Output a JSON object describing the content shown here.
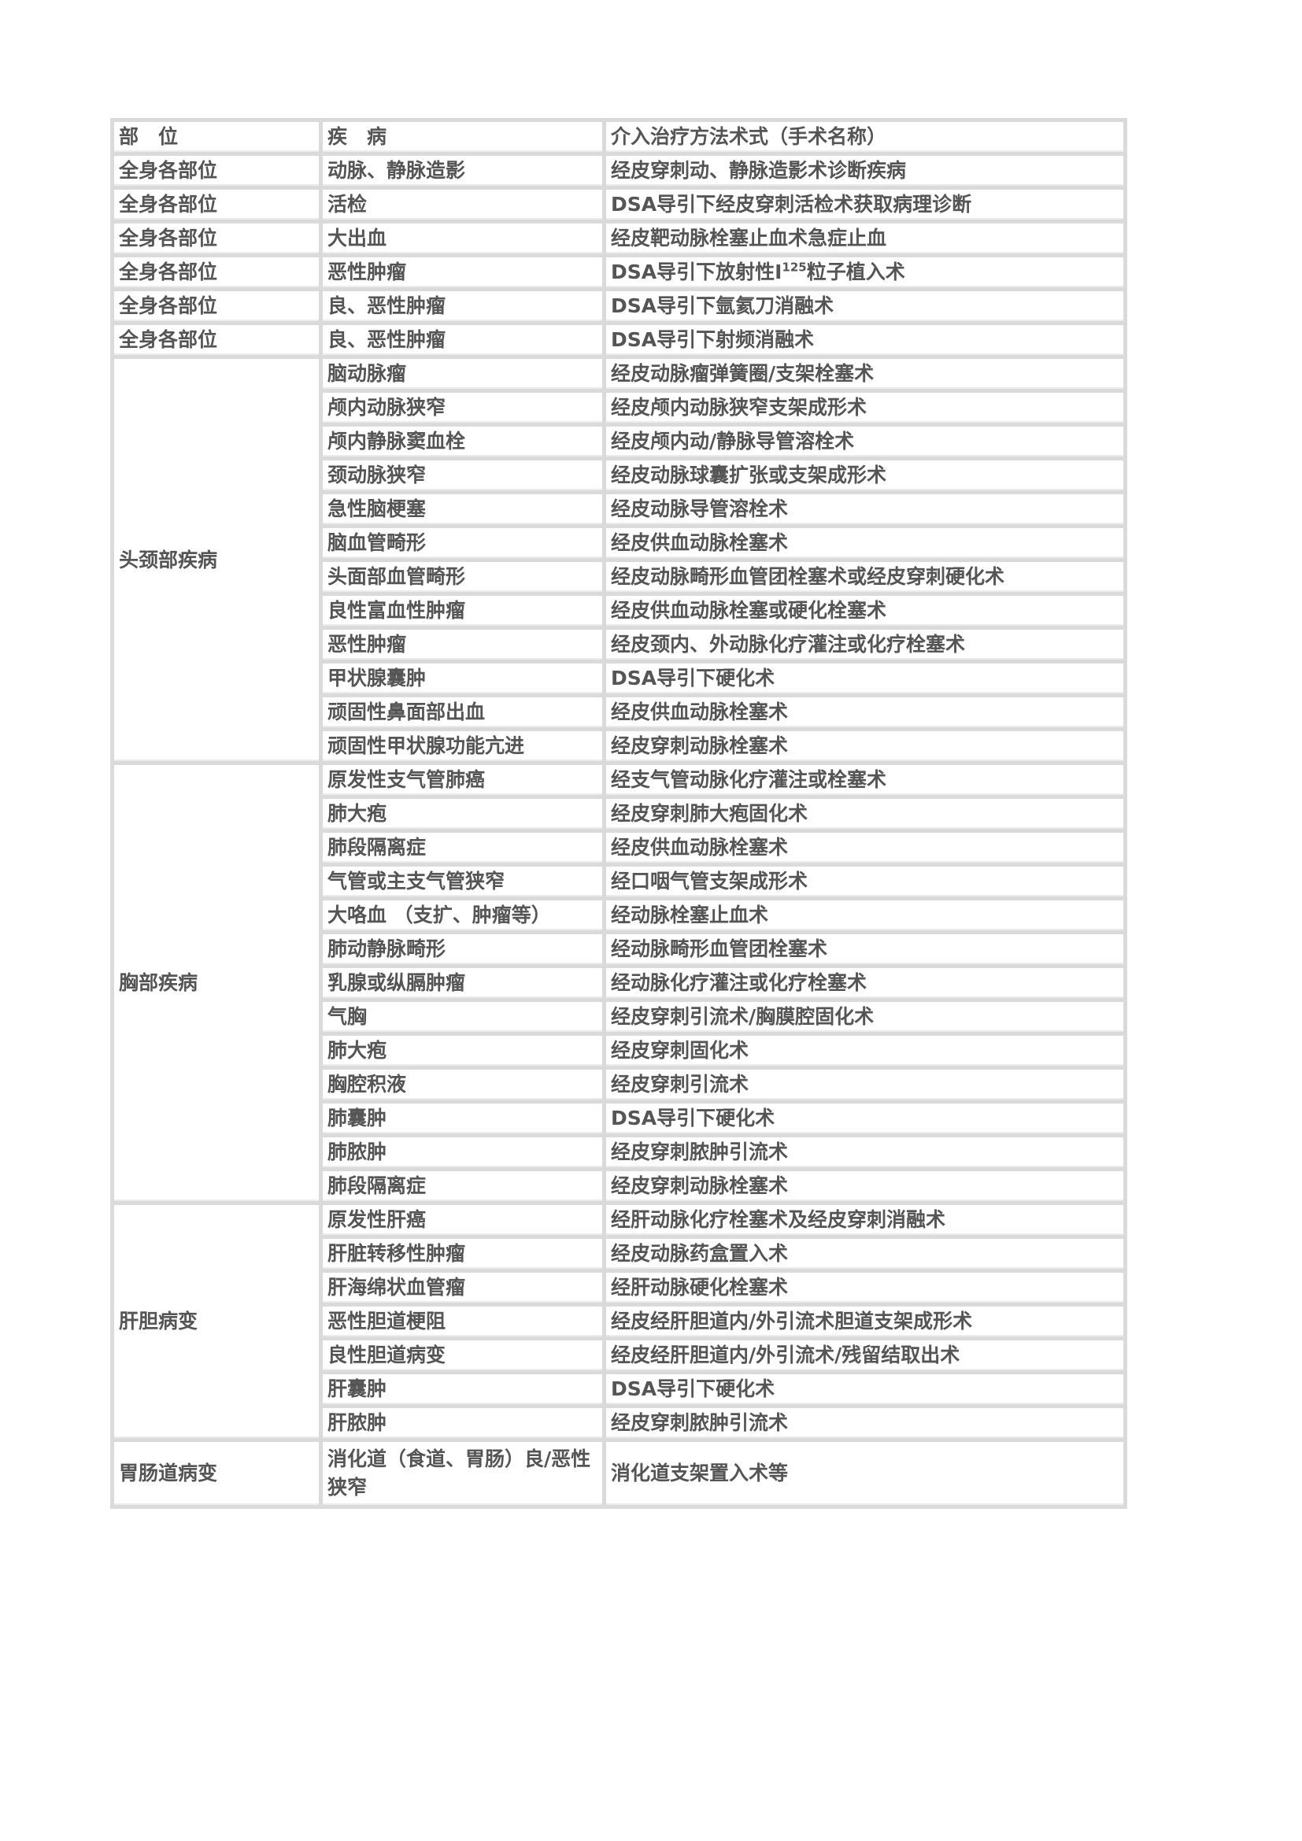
{
  "header": [
    "部　位",
    "疾　病",
    "介入治疗方法术式（手术名称）"
  ],
  "groups": [
    {
      "site": "全身各部位",
      "rows": [
        {
          "disease": "动脉、静脉造影",
          "method": "经皮穿刺动、静脉造影术诊断疾病"
        },
        {
          "disease": "活检",
          "method": "DSA导引下经皮穿刺活检术获取病理诊断"
        },
        {
          "disease": "大出血",
          "method": "经皮靶动脉栓塞止血术急症止血"
        },
        {
          "disease": "恶性肿瘤",
          "method": "DSA导引下放射性I",
          "sup": "125",
          "method_after": "粒子植入术"
        },
        {
          "disease": "良、恶性肿瘤",
          "method": "DSA导引下氩氦刀消融术"
        },
        {
          "disease": "良、恶性肿瘤",
          "method": "DSA导引下射频消融术"
        }
      ],
      "repeat_site": true
    },
    {
      "site": "头颈部疾病",
      "rows": [
        {
          "disease": "脑动脉瘤",
          "method": "经皮动脉瘤弹簧圈/支架栓塞术"
        },
        {
          "disease": "颅内动脉狭窄",
          "method": "经皮颅内动脉狭窄支架成形术"
        },
        {
          "disease": "颅内静脉窦血栓",
          "method": "经皮颅内动/静脉导管溶栓术"
        },
        {
          "disease": "颈动脉狭窄",
          "method": "经皮动脉球囊扩张或支架成形术"
        },
        {
          "disease": "急性脑梗塞",
          "method": "经皮动脉导管溶栓术"
        },
        {
          "disease": "脑血管畸形",
          "method": "经皮供血动脉栓塞术"
        },
        {
          "disease": "头面部血管畸形",
          "method": "经皮动脉畸形血管团栓塞术或经皮穿刺硬化术"
        },
        {
          "disease": "良性富血性肿瘤",
          "method": "经皮供血动脉栓塞或硬化栓塞术"
        },
        {
          "disease": "恶性肿瘤",
          "method": "经皮颈内、外动脉化疗灌注或化疗栓塞术"
        },
        {
          "disease": "甲状腺囊肿",
          "method": "DSA导引下硬化术"
        },
        {
          "disease": "顽固性鼻面部出血",
          "method": "经皮供血动脉栓塞术"
        },
        {
          "disease": "顽固性甲状腺功能亢进",
          "method": "经皮穿刺动脉栓塞术"
        }
      ]
    },
    {
      "site": "胸部疾病",
      "rows": [
        {
          "disease": "原发性支气管肺癌",
          "method": "经支气管动脉化疗灌注或栓塞术"
        },
        {
          "disease": " 肺大疱",
          "method": "经皮穿刺肺大疱固化术"
        },
        {
          "disease": "肺段隔离症",
          "method": "经皮供血动脉栓塞术"
        },
        {
          "disease": "气管或主支气管狭窄",
          "method": "经口咽气管支架成形术"
        },
        {
          "disease": "大咯血 （支扩、肿瘤等）",
          "method": "经动脉栓塞止血术"
        },
        {
          "disease": "肺动静脉畸形",
          "method": "经动脉畸形血管团栓塞术"
        },
        {
          "disease": "乳腺或纵膈肿瘤",
          "method": "经动脉化疗灌注或化疗栓塞术"
        },
        {
          "disease": "气胸",
          "method": "经皮穿刺引流术/胸膜腔固化术"
        },
        {
          "disease": "肺大疱",
          "method": "经皮穿刺固化术"
        },
        {
          "disease": "胸腔积液",
          "method": "经皮穿刺引流术"
        },
        {
          "disease": "肺囊肿",
          "method": "DSA导引下硬化术"
        },
        {
          "disease": "肺脓肿",
          "method": "经皮穿刺脓肿引流术"
        },
        {
          "disease": "肺段隔离症",
          "method": "经皮穿刺动脉栓塞术"
        }
      ]
    },
    {
      "site": "肝胆病变",
      "rows": [
        {
          "disease": "原发性肝癌",
          "method": "经肝动脉化疗栓塞术及经皮穿刺消融术"
        },
        {
          "disease": "肝脏转移性肿瘤",
          "method": "经皮动脉药盒置入术"
        },
        {
          "disease": "肝海绵状血管瘤",
          "method": "经肝动脉硬化栓塞术"
        },
        {
          "disease": "恶性胆道梗阻",
          "method": "经皮经肝胆道内/外引流术胆道支架成形术"
        },
        {
          "disease": "良性胆道病变",
          "method": "经皮经肝胆道内/外引流术/残留结取出术"
        },
        {
          "disease": "肝囊肿",
          "method": "DSA导引下硬化术"
        },
        {
          "disease": "肝脓肿",
          "method": "经皮穿刺脓肿引流术"
        }
      ]
    },
    {
      "site": "胃肠道病变",
      "rows": [
        {
          "disease": "消化道（食道、胃肠）良/恶性狭窄",
          "method": "消化道支架置入术等",
          "wrap": true
        }
      ]
    }
  ]
}
